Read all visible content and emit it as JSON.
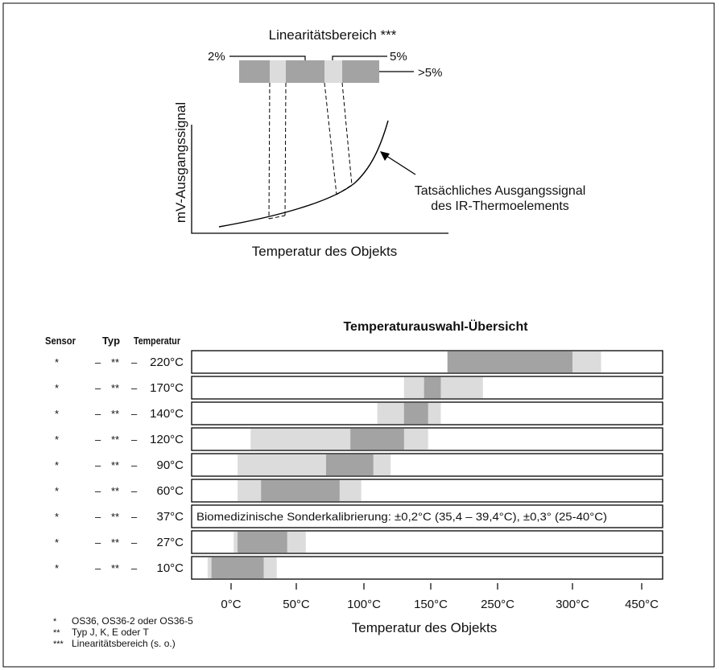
{
  "top_diagram": {
    "linearity_title": "Linearitätsbereich ***",
    "label_2pct": "2%",
    "label_5pct": "5%",
    "label_gt5pct": ">5%",
    "y_axis_label": "mV-Ausgangssignal",
    "x_axis_label": "Temperatur des Objekts",
    "curve_label_line1": "Tatsächliches Ausgangssignal",
    "curve_label_line2": "des IR-Thermoelements"
  },
  "overview": {
    "title": "Temperaturauswahl-Übersicht",
    "col_sensor": "Sensor",
    "col_typ": "Typ",
    "col_temp": "Temperatur",
    "sensor_mark": "*",
    "typ_mark": "**",
    "dash": "–",
    "x_axis_title": "Temperatur des Objekts",
    "colors": {
      "dark": "#a3a3a3",
      "light": "#dcdcdc",
      "frame": "#000000"
    }
  },
  "chart_data": {
    "type": "bar",
    "title": "Temperaturauswahl-Übersicht",
    "xlabel": "Temperatur des Objekts",
    "ylabel": "",
    "x_ticks": [
      "0°C",
      "50°C",
      "100°C",
      "150°C",
      "250°C",
      "300°C",
      "450°C"
    ],
    "rows": [
      {
        "label": "220°C",
        "light": [
          "175°C",
          "362°C"
        ],
        "dark": [
          "175°C",
          "300°C"
        ]
      },
      {
        "label": "170°C",
        "light": [
          "130°C",
          "228°C"
        ],
        "dark": [
          "145°C",
          "165°C"
        ]
      },
      {
        "label": "140°C",
        "light": [
          "110°C",
          "165°C"
        ],
        "dark": [
          "130°C",
          "148°C"
        ]
      },
      {
        "label": "120°C",
        "light": [
          "15°C",
          "148°C"
        ],
        "dark": [
          "90°C",
          "130°C"
        ]
      },
      {
        "label": "90°C",
        "light": [
          "5°C",
          "120°C"
        ],
        "dark": [
          "72°C",
          "107°C"
        ]
      },
      {
        "label": "60°C",
        "light": [
          "5°C",
          "98°C"
        ],
        "dark": [
          "23°C",
          "82°C"
        ]
      },
      {
        "label": "37°C",
        "note": "Biomedizinische Sonderkalibrierung: ±0,2°C (35,4 – 39,4°C), ±0,3° (25-40°C)"
      },
      {
        "label": "27°C",
        "light": [
          "2°C",
          "57°C"
        ],
        "dark": [
          "5°C",
          "43°C"
        ]
      },
      {
        "label": "10°C",
        "light": [
          "-18°C",
          "35°C"
        ],
        "dark": [
          "-15°C",
          "25°C"
        ]
      }
    ]
  },
  "footnotes": [
    {
      "mark": "*",
      "text": "OS36, OS36-2 oder OS36-5"
    },
    {
      "mark": "**",
      "text": "Typ J, K, E oder T"
    },
    {
      "mark": "***",
      "text": "Linearitätsbereich (s. o.)"
    }
  ]
}
